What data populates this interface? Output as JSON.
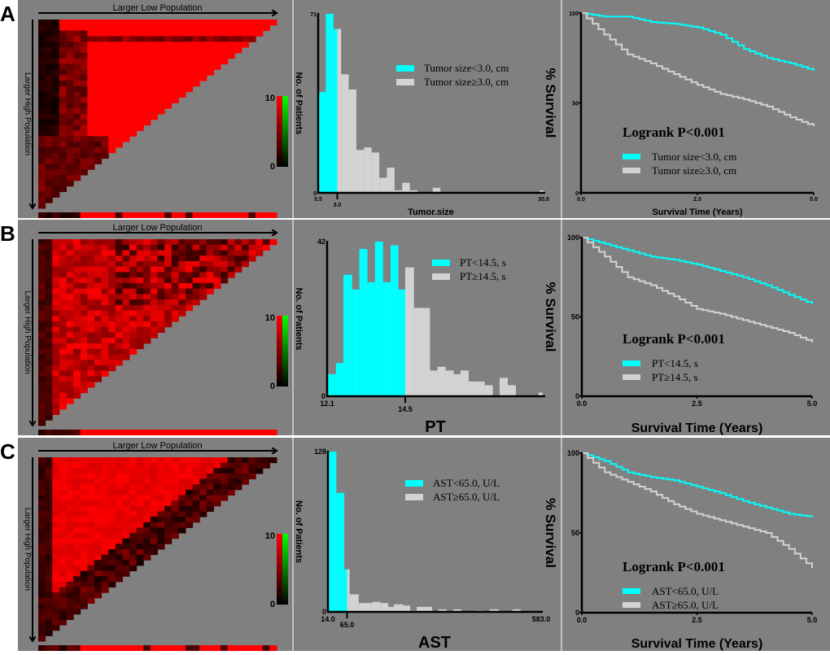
{
  "panels": [
    {
      "letter": "A",
      "heatmap": {
        "top_label": "Larger Low Population",
        "left_label": "Larger High Population",
        "colorbar_max": "10",
        "colorbar_min": "0"
      },
      "histogram": {
        "ylabel": "No. of Patients",
        "xlabel": "Tumor.size",
        "y_max_label": "71",
        "y_min_label": "0",
        "x_ticks": [
          "0.5",
          "3.0",
          "30.0"
        ],
        "legend": [
          "Tumor size<3.0, cm",
          "Tumor size≥3.0, cm"
        ]
      },
      "survival": {
        "ylabel": "% Survival",
        "xlabel": "Survival Time (Years)",
        "y_ticks": [
          "100",
          "50",
          "0"
        ],
        "x_ticks": [
          "0.0",
          "2.5",
          "5.0"
        ],
        "logrank": "Logrank P<0.001",
        "legend": [
          "Tumor size<3.0, cm",
          "Tumor size≥3.0, cm"
        ]
      }
    },
    {
      "letter": "B",
      "heatmap": {
        "top_label": "Larger Low Population",
        "left_label": "Larger High Population",
        "colorbar_max": "10",
        "colorbar_min": "0"
      },
      "histogram": {
        "ylabel": "No. of Patients",
        "xlabel": "PT",
        "y_max_label": "42",
        "y_min_label": "0",
        "x_ticks": [
          "12.1",
          "14.5"
        ],
        "legend": [
          "PT<14.5, s",
          "PT≥14.5, s"
        ]
      },
      "survival": {
        "ylabel": "% Survival",
        "xlabel": "Survival Time (Years)",
        "y_ticks": [
          "100",
          "50",
          "0"
        ],
        "x_ticks": [
          "0.0",
          "2.5",
          "5.0"
        ],
        "logrank": "Logrank P<0.001",
        "legend": [
          "PT<14.5, s",
          "PT≥14.5, s"
        ]
      }
    },
    {
      "letter": "C",
      "heatmap": {
        "top_label": "Larger Low Population",
        "left_label": "Larger High Population",
        "colorbar_max": "10",
        "colorbar_min": "0"
      },
      "histogram": {
        "ylabel": "No. of Patients",
        "xlabel": "AST",
        "y_max_label": "128",
        "y_min_label": "0",
        "x_ticks": [
          "14.0",
          "65.0",
          "583.0"
        ],
        "legend": [
          "AST<65.0, U/L",
          "AST≥65.0, U/L"
        ]
      },
      "survival": {
        "ylabel": "% Survival",
        "xlabel": "Survival Time (Years)",
        "y_ticks": [
          "100",
          "50",
          "0"
        ],
        "x_ticks": [
          "0.0",
          "2.5",
          "5.0"
        ],
        "logrank": "Logrank P<0.001",
        "legend": [
          "AST<65.0, U/L",
          "AST≥65.0, U/L"
        ]
      }
    }
  ],
  "colors": {
    "background": "#808080",
    "low_group": "#00ffff",
    "high_group": "#d3d3d3",
    "heat_high": "#ff0000",
    "heat_low": "#000000",
    "heat_alt": "#00ff00"
  },
  "chart_data": [
    {
      "type": "bar",
      "title": "",
      "xlabel": "Tumor.size",
      "ylabel": "No. of Patients",
      "threshold": 3.0,
      "xlim": [
        0.5,
        30.0
      ],
      "ylim": [
        0,
        71
      ],
      "bins": [
        [
          0.5,
          1.5,
          40
        ],
        [
          1.5,
          2.5,
          71
        ],
        [
          2.5,
          3.0,
          65
        ],
        [
          3.0,
          3.5,
          65
        ],
        [
          3.5,
          4.5,
          47
        ],
        [
          4.5,
          5.5,
          41
        ],
        [
          5.5,
          6.5,
          17
        ],
        [
          6.5,
          7.5,
          18
        ],
        [
          7.5,
          8.5,
          16
        ],
        [
          8.5,
          9.5,
          6
        ],
        [
          9.5,
          10.5,
          10
        ],
        [
          10.5,
          11.5,
          1
        ],
        [
          11.5,
          12.5,
          4
        ],
        [
          12.5,
          13.5,
          1
        ],
        [
          15.5,
          16.5,
          2
        ],
        [
          29.5,
          30.0,
          1
        ]
      ]
    },
    {
      "type": "line",
      "xlabel": "Survival Time (Years)",
      "ylabel": "% Survival",
      "xlim": [
        0,
        5
      ],
      "ylim": [
        0,
        100
      ],
      "x": [
        0,
        0.5,
        1,
        1.5,
        2,
        2.5,
        3,
        3.5,
        4,
        4.5,
        5
      ],
      "series": [
        {
          "name": "Tumor size<3.0, cm",
          "values": [
            100,
            98,
            98,
            95,
            94,
            92,
            88,
            80,
            75,
            72,
            68
          ]
        },
        {
          "name": "Tumor size≥3.0, cm",
          "values": [
            100,
            88,
            77,
            72,
            66,
            60,
            55,
            52,
            48,
            42,
            37
          ]
        }
      ]
    },
    {
      "type": "bar",
      "title": "",
      "xlabel": "PT",
      "ylabel": "No. of Patients",
      "threshold": 14.5,
      "xlim": [
        12.1,
        18.75
      ],
      "ylim": [
        0,
        42
      ],
      "bins": [
        [
          12.1,
          12.37,
          6
        ],
        [
          12.37,
          12.6,
          9
        ],
        [
          12.6,
          12.87,
          33
        ],
        [
          12.87,
          13.09,
          29
        ],
        [
          13.09,
          13.34,
          40
        ],
        [
          13.34,
          13.57,
          31
        ],
        [
          13.57,
          13.82,
          42
        ],
        [
          13.82,
          14.05,
          31
        ],
        [
          14.05,
          14.29,
          41
        ],
        [
          14.29,
          14.5,
          29
        ],
        [
          14.5,
          14.77,
          35
        ],
        [
          14.77,
          15.26,
          24
        ],
        [
          15.26,
          15.49,
          7
        ],
        [
          15.49,
          15.74,
          8
        ],
        [
          15.74,
          15.99,
          7
        ],
        [
          15.99,
          16.2,
          6
        ],
        [
          16.2,
          16.45,
          7
        ],
        [
          16.45,
          16.94,
          4
        ],
        [
          16.94,
          17.19,
          3
        ],
        [
          17.4,
          17.65,
          5
        ],
        [
          17.65,
          17.9,
          3
        ],
        [
          18.6,
          18.72,
          1
        ]
      ]
    },
    {
      "type": "line",
      "xlabel": "Survival Time (Years)",
      "ylabel": "% Survival",
      "xlim": [
        0,
        5
      ],
      "ylim": [
        0,
        100
      ],
      "x": [
        0,
        0.5,
        1,
        1.5,
        2,
        2.5,
        3,
        3.5,
        4,
        4.5,
        5
      ],
      "series": [
        {
          "name": "PT<14.5, s",
          "values": [
            100,
            96,
            92,
            88,
            86,
            83,
            79,
            75,
            70,
            64,
            58
          ]
        },
        {
          "name": "PT≥14.5, s",
          "values": [
            100,
            88,
            75,
            70,
            63,
            55,
            52,
            48,
            44,
            40,
            34
          ]
        }
      ]
    },
    {
      "type": "bar",
      "title": "",
      "xlabel": "AST",
      "ylabel": "No. of Patients",
      "threshold": 65.0,
      "xlim": [
        14.0,
        583.0
      ],
      "ylim": [
        0,
        128
      ],
      "bins": [
        [
          14,
          36.6,
          128
        ],
        [
          36.6,
          57.6,
          95
        ],
        [
          57.6,
          65,
          34
        ],
        [
          65,
          71.9,
          34
        ],
        [
          71.9,
          96,
          14
        ],
        [
          96,
          132,
          7
        ],
        [
          132,
          154.6,
          8
        ],
        [
          154.6,
          174.9,
          7
        ],
        [
          174.9,
          190,
          4
        ],
        [
          190,
          214.8,
          6
        ],
        [
          214.8,
          233.5,
          5
        ],
        [
          233.5,
          250.8,
          1
        ],
        [
          250.8,
          292,
          4
        ],
        [
          308.7,
          331,
          2
        ],
        [
          347.8,
          370.4,
          2
        ],
        [
          406.5,
          429,
          1
        ],
        [
          445.6,
          470.4,
          2
        ],
        [
          506.5,
          528.3,
          2
        ]
      ]
    },
    {
      "type": "line",
      "xlabel": "Survival Time (Years)",
      "ylabel": "% Survival",
      "xlim": [
        0,
        5
      ],
      "ylim": [
        0,
        100
      ],
      "x": [
        0,
        0.5,
        1,
        1.5,
        2,
        2.5,
        3,
        3.5,
        4,
        4.5,
        5
      ],
      "series": [
        {
          "name": "AST<65.0, U/L",
          "values": [
            100,
            95,
            88,
            85,
            83,
            79,
            75,
            70,
            66,
            62,
            60
          ]
        },
        {
          "name": "AST≥65.0, U/L",
          "values": [
            100,
            88,
            82,
            76,
            68,
            62,
            58,
            54,
            50,
            40,
            28
          ]
        }
      ]
    }
  ]
}
